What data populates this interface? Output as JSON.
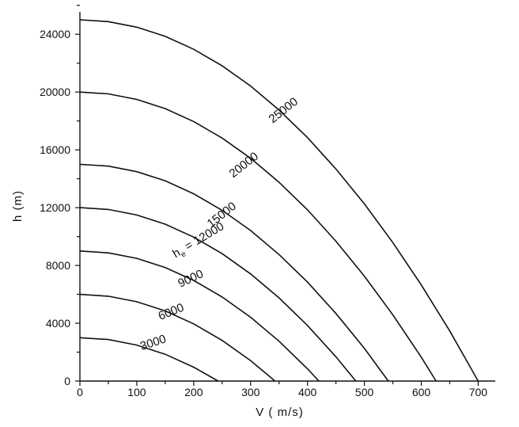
{
  "chart_data": {
    "type": "line",
    "title": "",
    "xlabel": "V ( m/s)",
    "ylabel": "h (m)",
    "xlim": [
      0,
      730
    ],
    "ylim": [
      0,
      26000
    ],
    "x_ticks": [
      0,
      100,
      200,
      300,
      400,
      500,
      600,
      700
    ],
    "y_ticks": [
      0,
      4000,
      8000,
      12000,
      16000,
      20000,
      24000
    ],
    "grid": false,
    "series": [
      {
        "name": "3000",
        "label": "3000",
        "he": 3000,
        "x": [
          0,
          50,
          100,
          150,
          200,
          243
        ],
        "y": [
          3000,
          2873,
          2490,
          1853,
          961,
          0
        ]
      },
      {
        "name": "6000",
        "label": "6000",
        "he": 6000,
        "x": [
          0,
          50,
          100,
          150,
          200,
          250,
          300,
          343
        ],
        "y": [
          6000,
          5873,
          5490,
          4853,
          3961,
          2815,
          1414,
          0
        ]
      },
      {
        "name": "9000",
        "label": "9000",
        "he": 9000,
        "x": [
          0,
          50,
          100,
          150,
          200,
          250,
          300,
          350,
          400,
          420
        ],
        "y": [
          9000,
          8873,
          8490,
          7853,
          6961,
          5815,
          4414,
          2756,
          845,
          0
        ]
      },
      {
        "name": "12000",
        "label": "h_e = 12000",
        "he": 12000,
        "x": [
          0,
          50,
          100,
          150,
          200,
          250,
          300,
          350,
          400,
          450,
          485
        ],
        "y": [
          12000,
          11873,
          11490,
          10853,
          9961,
          8815,
          7414,
          5756,
          3845,
          1679,
          0
        ]
      },
      {
        "name": "15000",
        "label": "15000",
        "he": 15000,
        "x": [
          0,
          50,
          100,
          150,
          200,
          250,
          300,
          350,
          400,
          450,
          500,
          542
        ],
        "y": [
          15000,
          14873,
          14490,
          13853,
          12961,
          11815,
          10414,
          8756,
          6845,
          4679,
          2257,
          0
        ]
      },
      {
        "name": "20000",
        "label": "20000",
        "he": 20000,
        "x": [
          0,
          50,
          100,
          150,
          200,
          250,
          300,
          350,
          400,
          450,
          500,
          550,
          600,
          626
        ],
        "y": [
          20000,
          19873,
          19490,
          18853,
          17961,
          16815,
          15414,
          13756,
          11845,
          9679,
          7257,
          4581,
          1651,
          0
        ]
      },
      {
        "name": "25000",
        "label": "25000",
        "he": 25000,
        "x": [
          0,
          50,
          100,
          150,
          200,
          250,
          300,
          350,
          400,
          450,
          500,
          550,
          600,
          650,
          700
        ],
        "y": [
          25000,
          24873,
          24490,
          23853,
          22961,
          21815,
          20414,
          18756,
          16845,
          14679,
          12257,
          9581,
          6651,
          3466,
          0
        ]
      }
    ]
  }
}
